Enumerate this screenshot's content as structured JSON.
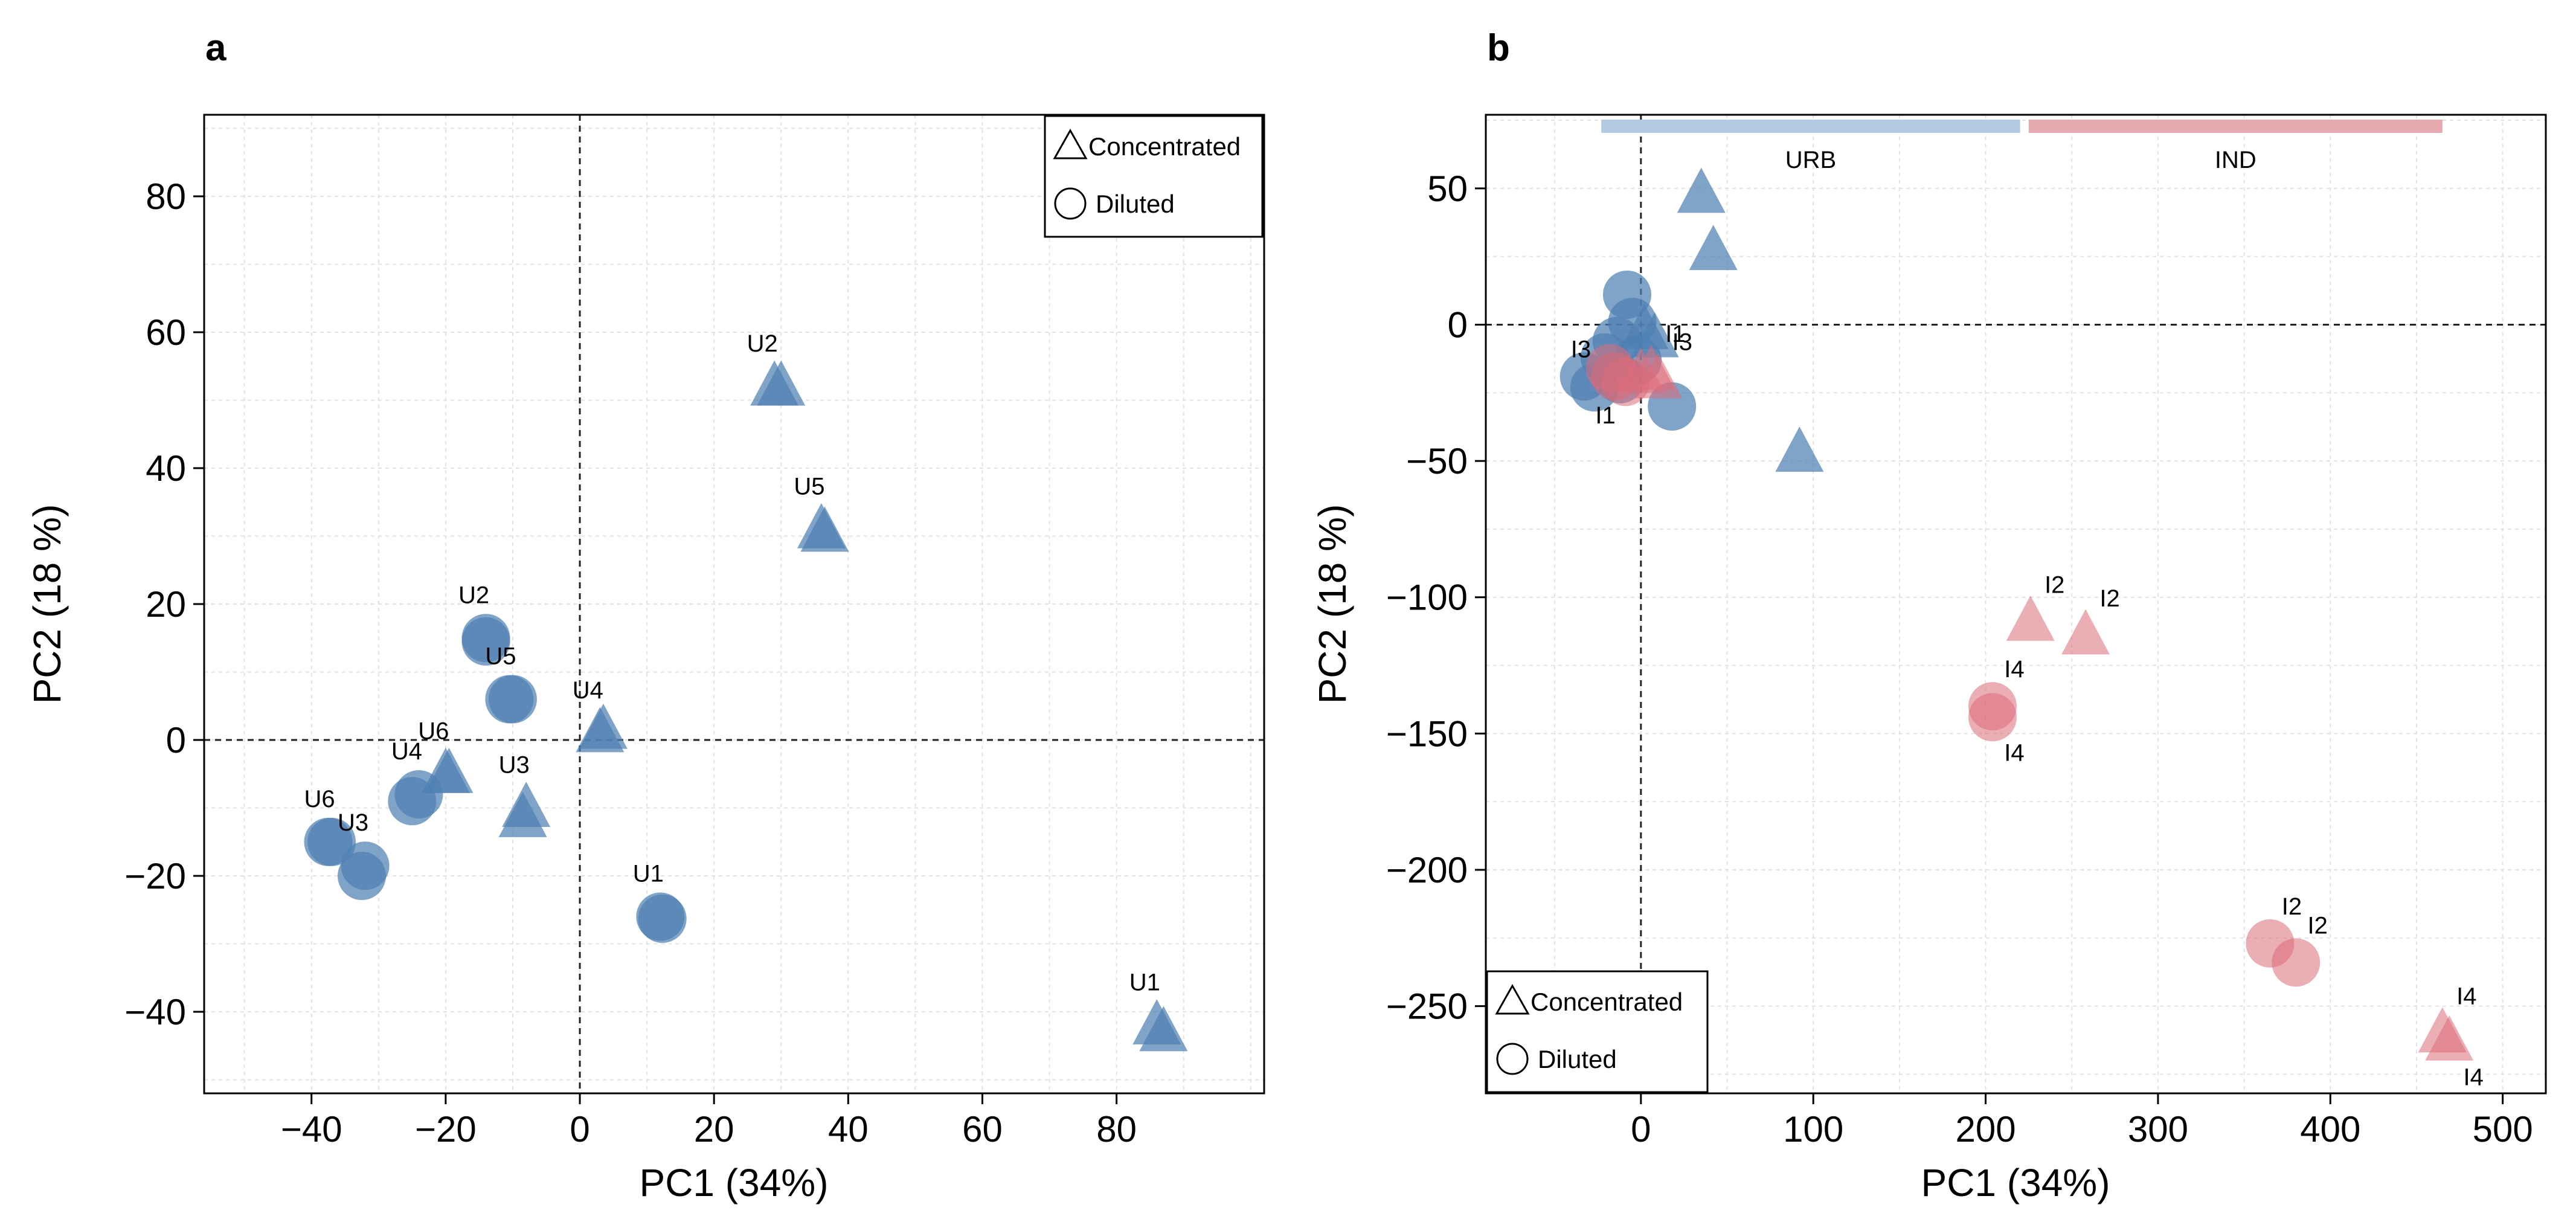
{
  "chart_data": [
    {
      "panel": "a",
      "type": "scatter",
      "xlabel": "PC1 (34%)",
      "ylabel": "PC2 (18 %)",
      "xlim": [
        -56,
        102
      ],
      "ylim": [
        -52,
        92
      ],
      "xticks": [
        -40,
        -20,
        0,
        20,
        40,
        60,
        80
      ],
      "yticks": [
        -40,
        -20,
        0,
        20,
        40,
        60,
        80
      ],
      "grid": true,
      "zero_lines": true,
      "legend": {
        "placement": "top-right",
        "entries": [
          {
            "shape": "triangle",
            "label": "Concentrated"
          },
          {
            "shape": "circle",
            "label": "Diluted"
          }
        ]
      },
      "points": [
        {
          "x": 29,
          "y": 52,
          "shape": "triangle",
          "group": "URB",
          "label": "U2"
        },
        {
          "x": 30,
          "y": 52,
          "shape": "triangle",
          "group": "URB",
          "label": ""
        },
        {
          "x": 36,
          "y": 31,
          "shape": "triangle",
          "group": "URB",
          "label": "U5"
        },
        {
          "x": 36.5,
          "y": 30.5,
          "shape": "triangle",
          "group": "URB",
          "label": ""
        },
        {
          "x": 3,
          "y": 1,
          "shape": "triangle",
          "group": "URB",
          "label": "U4"
        },
        {
          "x": 3.5,
          "y": 1.5,
          "shape": "triangle",
          "group": "URB",
          "label": ""
        },
        {
          "x": -20,
          "y": -5,
          "shape": "triangle",
          "group": "URB",
          "label": "U6"
        },
        {
          "x": -19.5,
          "y": -5,
          "shape": "triangle",
          "group": "URB",
          "label": ""
        },
        {
          "x": -8,
          "y": -10,
          "shape": "triangle",
          "group": "URB",
          "label": "U3"
        },
        {
          "x": -8.5,
          "y": -11.5,
          "shape": "triangle",
          "group": "URB",
          "label": ""
        },
        {
          "x": 86,
          "y": -42,
          "shape": "triangle",
          "group": "URB",
          "label": "U1"
        },
        {
          "x": 87,
          "y": -43,
          "shape": "triangle",
          "group": "URB",
          "label": ""
        },
        {
          "x": -14,
          "y": 15,
          "shape": "circle",
          "group": "URB",
          "label": "U2"
        },
        {
          "x": -14,
          "y": 14.5,
          "shape": "circle",
          "group": "URB",
          "label": ""
        },
        {
          "x": -10,
          "y": 6,
          "shape": "circle",
          "group": "URB",
          "label": "U5"
        },
        {
          "x": -10.5,
          "y": 6,
          "shape": "circle",
          "group": "URB",
          "label": ""
        },
        {
          "x": -24,
          "y": -8,
          "shape": "circle",
          "group": "URB",
          "label": "U4"
        },
        {
          "x": -25,
          "y": -9,
          "shape": "circle",
          "group": "URB",
          "label": ""
        },
        {
          "x": -37,
          "y": -15,
          "shape": "circle",
          "group": "URB",
          "label": "U6"
        },
        {
          "x": -37.5,
          "y": -15,
          "shape": "circle",
          "group": "URB",
          "label": ""
        },
        {
          "x": -32,
          "y": -18.5,
          "shape": "circle",
          "group": "URB",
          "label": "U3"
        },
        {
          "x": -32.5,
          "y": -20,
          "shape": "circle",
          "group": "URB",
          "label": ""
        },
        {
          "x": 12,
          "y": -26,
          "shape": "circle",
          "group": "URB",
          "label": "U1"
        },
        {
          "x": 12.3,
          "y": -26.3,
          "shape": "circle",
          "group": "URB",
          "label": ""
        }
      ]
    },
    {
      "panel": "b",
      "type": "scatter",
      "xlabel": "PC1 (34%)",
      "ylabel": "PC2 (18 %)",
      "xlim": [
        -90,
        525
      ],
      "ylim": [
        -282,
        77
      ],
      "xticks": [
        0,
        100,
        200,
        300,
        400,
        500
      ],
      "yticks": [
        -250,
        -200,
        -150,
        -100,
        -50,
        0,
        50
      ],
      "grid": true,
      "zero_lines": true,
      "legend": {
        "placement": "bottom-left",
        "entries": [
          {
            "shape": "triangle",
            "label": "Concentrated"
          },
          {
            "shape": "circle",
            "label": "Diluted"
          }
        ]
      },
      "group_bars": [
        {
          "label": "URB",
          "x_start": -23,
          "x_end": 220,
          "color": "#b1c9e1"
        },
        {
          "label": "IND",
          "x_start": 225,
          "x_end": 465,
          "color": "#e8aab1"
        }
      ],
      "points": [
        {
          "x": 35,
          "y": 48,
          "shape": "triangle",
          "group": "URB",
          "label": ""
        },
        {
          "x": 42,
          "y": 27,
          "shape": "triangle",
          "group": "URB",
          "label": ""
        },
        {
          "x": 92,
          "y": -47,
          "shape": "triangle",
          "group": "URB",
          "label": ""
        },
        {
          "x": 8,
          "y": -5,
          "shape": "triangle",
          "group": "URB",
          "label": ""
        },
        {
          "x": 2,
          "y": -2,
          "shape": "triangle",
          "group": "URB",
          "label": ""
        },
        {
          "x": -8,
          "y": 11,
          "shape": "circle",
          "group": "URB",
          "label": ""
        },
        {
          "x": -5,
          "y": 1,
          "shape": "circle",
          "group": "URB",
          "label": ""
        },
        {
          "x": -14,
          "y": -6,
          "shape": "circle",
          "group": "URB",
          "label": ""
        },
        {
          "x": -21,
          "y": -12,
          "shape": "circle",
          "group": "URB",
          "label": ""
        },
        {
          "x": -33,
          "y": -19,
          "shape": "circle",
          "group": "URB",
          "label": ""
        },
        {
          "x": -27,
          "y": -23,
          "shape": "circle",
          "group": "URB",
          "label": ""
        },
        {
          "x": -12,
          "y": -20,
          "shape": "circle",
          "group": "URB",
          "label": ""
        },
        {
          "x": 18,
          "y": -30,
          "shape": "circle",
          "group": "URB",
          "label": ""
        },
        {
          "x": -2,
          "y": -13,
          "shape": "circle",
          "group": "URB",
          "label": ""
        },
        {
          "x": -18,
          "y": -16,
          "shape": "circle",
          "group": "IND",
          "label": "I3"
        },
        {
          "x": -15,
          "y": -19,
          "shape": "circle",
          "group": "IND",
          "label": "I1"
        },
        {
          "x": -9,
          "y": -21,
          "shape": "circle",
          "group": "IND",
          "label": ""
        },
        {
          "x": 6,
          "y": -17,
          "shape": "triangle",
          "group": "IND",
          "label": "I1"
        },
        {
          "x": 10,
          "y": -20,
          "shape": "triangle",
          "group": "IND",
          "label": "I3"
        },
        {
          "x": 0,
          "y": -18,
          "shape": "triangle",
          "group": "IND",
          "label": ""
        },
        {
          "x": 226,
          "y": -109,
          "shape": "triangle",
          "group": "IND",
          "label": "I2"
        },
        {
          "x": 258,
          "y": -114,
          "shape": "triangle",
          "group": "IND",
          "label": "I2"
        },
        {
          "x": 204,
          "y": -140,
          "shape": "circle",
          "group": "IND",
          "label": "I4"
        },
        {
          "x": 204,
          "y": -144,
          "shape": "circle",
          "group": "IND",
          "label": "I4"
        },
        {
          "x": 365,
          "y": -227,
          "shape": "circle",
          "group": "IND",
          "label": "I2"
        },
        {
          "x": 380,
          "y": -234,
          "shape": "circle",
          "group": "IND",
          "label": "I2"
        },
        {
          "x": 465,
          "y": -260,
          "shape": "triangle",
          "group": "IND",
          "label": "I4"
        },
        {
          "x": 469,
          "y": -263,
          "shape": "triangle",
          "group": "IND",
          "label": "I4"
        }
      ]
    }
  ],
  "colors": {
    "URB": "#4f7fb3",
    "IND": "#dc6b79",
    "URB_bar": "#b1c9e1",
    "IND_bar": "#e8aab1"
  }
}
